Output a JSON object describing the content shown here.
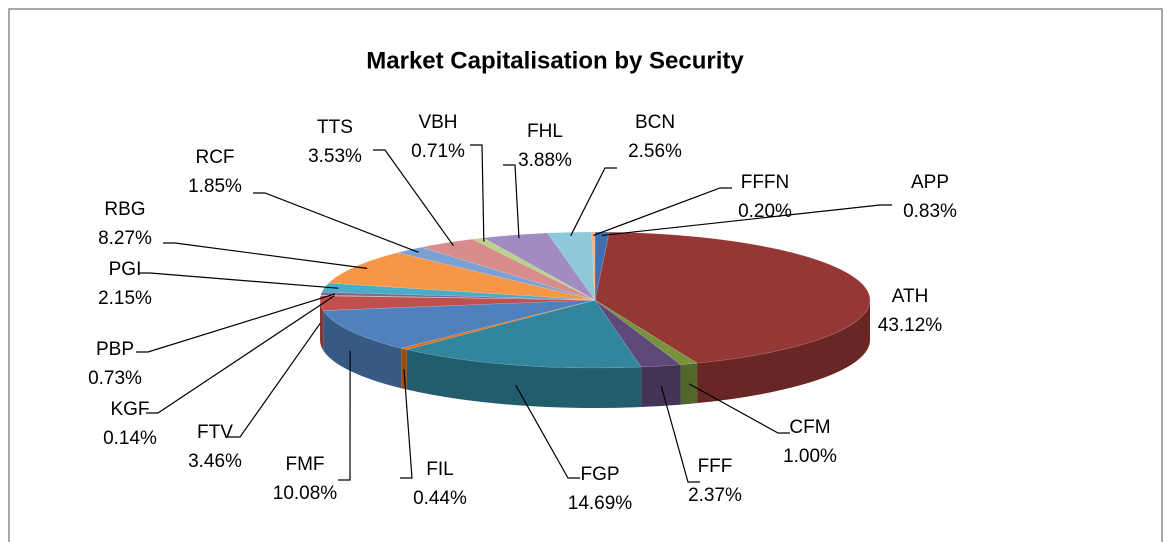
{
  "chart_data": {
    "type": "pie3d",
    "title": "Market Capitalisation by Security",
    "categories": [
      "APP",
      "ATH",
      "CFM",
      "FFF",
      "FGP",
      "FIL",
      "FMF",
      "FTV",
      "KGF",
      "PBP",
      "PGI",
      "RBG",
      "RCF",
      "TTS",
      "VBH",
      "FHL",
      "BCN",
      "FFFN"
    ],
    "values": [
      0.83,
      43.12,
      1.0,
      2.37,
      14.69,
      0.44,
      10.08,
      3.46,
      0.14,
      0.73,
      2.15,
      8.27,
      1.85,
      3.53,
      0.71,
      3.88,
      2.56,
      0.2
    ],
    "value_labels": [
      "0.83%",
      "43.12%",
      "1.00%",
      "2.37%",
      "14.69%",
      "0.44%",
      "10.08%",
      "3.46%",
      "0.14%",
      "0.73%",
      "2.15%",
      "8.27%",
      "1.85%",
      "3.53%",
      "0.71%",
      "3.88%",
      "2.56%",
      "0.20%"
    ],
    "colors": [
      "#3f6fb0",
      "#953735",
      "#77933c",
      "#5f497a",
      "#31859c",
      "#e46c0a",
      "#4f81bd",
      "#c0504d",
      "#9bbb59",
      "#8064a2",
      "#4bacc6",
      "#f79646",
      "#7ba0d4",
      "#d88c8b",
      "#b7d48a",
      "#a08cc0",
      "#8fc8d8",
      "#f9b27a"
    ]
  }
}
